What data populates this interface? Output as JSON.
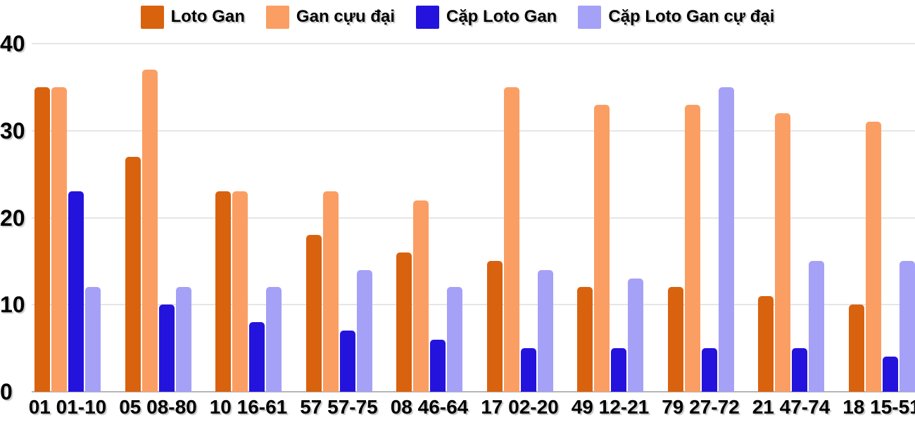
{
  "chart_data": {
    "type": "bar",
    "title": "",
    "xlabel": "",
    "ylabel": "",
    "categories": [
      "01 01-10",
      "05 08-80",
      "10 16-61",
      "57 57-75",
      "08 46-64",
      "17 02-20",
      "49 12-21",
      "79 27-72",
      "21 47-74",
      "18 15-51"
    ],
    "series": [
      {
        "name": "Loto Gan",
        "color": "#d9620f",
        "values": [
          35,
          27,
          23,
          18,
          16,
          15,
          12,
          12,
          11,
          10
        ]
      },
      {
        "name": "Gan cựu đại",
        "color": "#fb9e63",
        "values": [
          35,
          37,
          23,
          23,
          22,
          35,
          33,
          33,
          32,
          31
        ]
      },
      {
        "name": "Cặp Loto Gan",
        "color": "#2413dd",
        "values": [
          23,
          10,
          8,
          7,
          6,
          5,
          5,
          5,
          5,
          4
        ]
      },
      {
        "name": "Cặp Loto Gan cự đại",
        "color": "#a5a1f7",
        "values": [
          12,
          12,
          12,
          14,
          12,
          14,
          13,
          35,
          15,
          15
        ]
      }
    ],
    "ylim": [
      0,
      40
    ],
    "yticks": [
      0,
      10,
      20,
      30,
      40
    ],
    "grid": true,
    "legend_position": "top",
    "background_color": "#ffffff",
    "gridline_color": "#e6e6e6",
    "baseline_color": "#b5b5b5",
    "axis_text_color": "#000000"
  }
}
